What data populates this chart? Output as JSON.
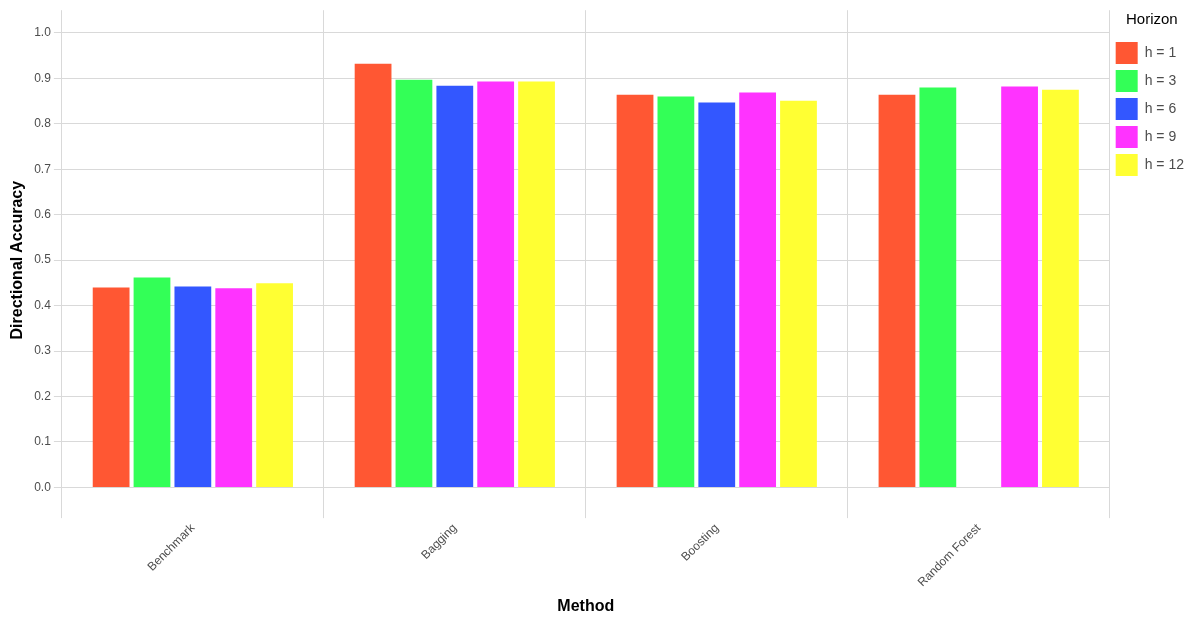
{
  "chart_data": {
    "type": "bar",
    "xlabel": "Method",
    "ylabel": "Directional Accuracy",
    "legend_title": "Horizon",
    "categories": [
      "Benchmark",
      "Bagging",
      "Boosting",
      "Random Forest"
    ],
    "series": [
      {
        "name": "h = 1",
        "color": "#ff5733",
        "values": [
          0.44,
          0.932,
          0.864,
          0.864
        ]
      },
      {
        "name": "h = 3",
        "color": "#33ff57",
        "values": [
          0.462,
          0.897,
          0.86,
          0.88
        ]
      },
      {
        "name": "h = 6",
        "color": "#3357ff",
        "values": [
          0.442,
          0.884,
          0.847,
          null
        ]
      },
      {
        "name": "h = 9",
        "color": "#ff33ff",
        "values": [
          0.438,
          0.893,
          0.869,
          0.882
        ]
      },
      {
        "name": "h = 12",
        "color": "#ffff33",
        "values": [
          0.449,
          0.893,
          0.851,
          0.875
        ]
      }
    ],
    "ylim": [
      -0.05,
      1.05
    ],
    "yticks": [
      {
        "value": 0,
        "label": "0.0"
      },
      {
        "value": 0.1,
        "label": "0.1"
      },
      {
        "value": 0.2,
        "label": "0.2"
      },
      {
        "value": 0.3,
        "label": "0.3"
      },
      {
        "value": 0.4,
        "label": "0.4"
      },
      {
        "value": 0.5,
        "label": "0.5"
      },
      {
        "value": 0.6,
        "label": "0.6"
      },
      {
        "value": 0.7,
        "label": "0.7"
      },
      {
        "value": 0.8,
        "label": "0.8"
      },
      {
        "value": 0.9,
        "label": "0.9"
      },
      {
        "value": 1,
        "label": "1.0"
      }
    ],
    "grid": true,
    "legend": "right"
  }
}
